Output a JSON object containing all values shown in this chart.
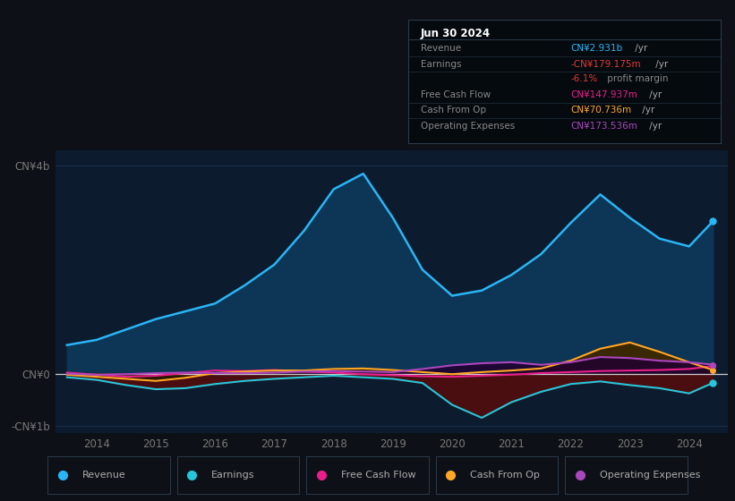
{
  "background_color": "#0d1117",
  "plot_bg_color": "#0d1b2e",
  "grid_color": "#1a3a5c",
  "zero_line_color": "#cccccc",
  "years": [
    2013.5,
    2014.0,
    2014.5,
    2015.0,
    2015.5,
    2016.0,
    2016.5,
    2017.0,
    2017.5,
    2018.0,
    2018.5,
    2019.0,
    2019.5,
    2020.0,
    2020.5,
    2021.0,
    2021.5,
    2022.0,
    2022.5,
    2023.0,
    2023.5,
    2024.0,
    2024.4
  ],
  "revenue": [
    0.55,
    0.65,
    0.85,
    1.05,
    1.2,
    1.35,
    1.7,
    2.1,
    2.75,
    3.55,
    3.85,
    3.0,
    2.0,
    1.5,
    1.6,
    1.9,
    2.3,
    2.9,
    3.45,
    3.0,
    2.6,
    2.45,
    2.931
  ],
  "earnings": [
    -0.07,
    -0.12,
    -0.22,
    -0.3,
    -0.28,
    -0.2,
    -0.14,
    -0.1,
    -0.07,
    -0.04,
    -0.07,
    -0.1,
    -0.18,
    -0.6,
    -0.85,
    -0.55,
    -0.35,
    -0.2,
    -0.15,
    -0.22,
    -0.28,
    -0.38,
    -0.179
  ],
  "free_cash_flow": [
    0.02,
    -0.02,
    -0.06,
    -0.04,
    0.01,
    0.06,
    0.05,
    0.07,
    0.04,
    0.02,
    -0.01,
    -0.03,
    -0.05,
    -0.06,
    -0.04,
    -0.02,
    0.01,
    0.03,
    0.05,
    0.06,
    0.07,
    0.09,
    0.148
  ],
  "cash_from_op": [
    -0.02,
    -0.06,
    -0.1,
    -0.14,
    -0.08,
    0.01,
    0.04,
    0.06,
    0.06,
    0.09,
    0.1,
    0.07,
    0.03,
    -0.01,
    0.03,
    0.06,
    0.1,
    0.25,
    0.48,
    0.6,
    0.42,
    0.22,
    0.071
  ],
  "operating_expenses": [
    0.0,
    -0.02,
    -0.01,
    0.01,
    0.02,
    0.01,
    0.01,
    0.02,
    0.04,
    0.05,
    0.04,
    0.03,
    0.09,
    0.16,
    0.2,
    0.22,
    0.17,
    0.22,
    0.32,
    0.3,
    0.25,
    0.22,
    0.174
  ],
  "revenue_color": "#29b6f6",
  "revenue_fill": "#0d3555",
  "earnings_color": "#26c6da",
  "earnings_fill": "#4a0e10",
  "free_cash_flow_color": "#e91e8c",
  "cash_from_op_color": "#ffa726",
  "cash_from_op_fill_pos": "#2d2000",
  "operating_expenses_color": "#ab47bc",
  "operating_expenses_fill_pos": "#1a0a2e",
  "info_box": {
    "title": "Jun 30 2024",
    "rows": [
      {
        "label": "Revenue",
        "value": "CN¥2.931b",
        "value_color": "#29b6f6",
        "suffix": " /yr"
      },
      {
        "label": "Earnings",
        "value": "-CN¥179.175m",
        "value_color": "#e53935",
        "suffix": " /yr"
      },
      {
        "label": "",
        "value": "-6.1%",
        "value_color": "#e53935",
        "suffix": " profit margin",
        "suffix_color": "#888888"
      },
      {
        "label": "Free Cash Flow",
        "value": "CN¥147.937m",
        "value_color": "#e91e8c",
        "suffix": " /yr"
      },
      {
        "label": "Cash From Op",
        "value": "CN¥70.736m",
        "value_color": "#ffa726",
        "suffix": " /yr"
      },
      {
        "label": "Operating Expenses",
        "value": "CN¥173.536m",
        "value_color": "#ab47bc",
        "suffix": " /yr"
      }
    ]
  },
  "legend": [
    {
      "label": "Revenue",
      "color": "#29b6f6"
    },
    {
      "label": "Earnings",
      "color": "#26c6da"
    },
    {
      "label": "Free Cash Flow",
      "color": "#e91e8c"
    },
    {
      "label": "Cash From Op",
      "color": "#ffa726"
    },
    {
      "label": "Operating Expenses",
      "color": "#ab47bc"
    }
  ],
  "xlim": [
    2013.3,
    2024.65
  ],
  "ylim": [
    -1.15,
    4.3
  ],
  "xticks": [
    2014,
    2015,
    2016,
    2017,
    2018,
    2019,
    2020,
    2021,
    2022,
    2023,
    2024
  ],
  "ytick_pos_top": 4.0,
  "ytick_pos_zero": 0.0,
  "ytick_pos_bottom": -1.0,
  "ytick_label_top": "CN¥4b",
  "ytick_label_zero": "CN¥0",
  "ytick_label_bottom": "-CN¥1b"
}
